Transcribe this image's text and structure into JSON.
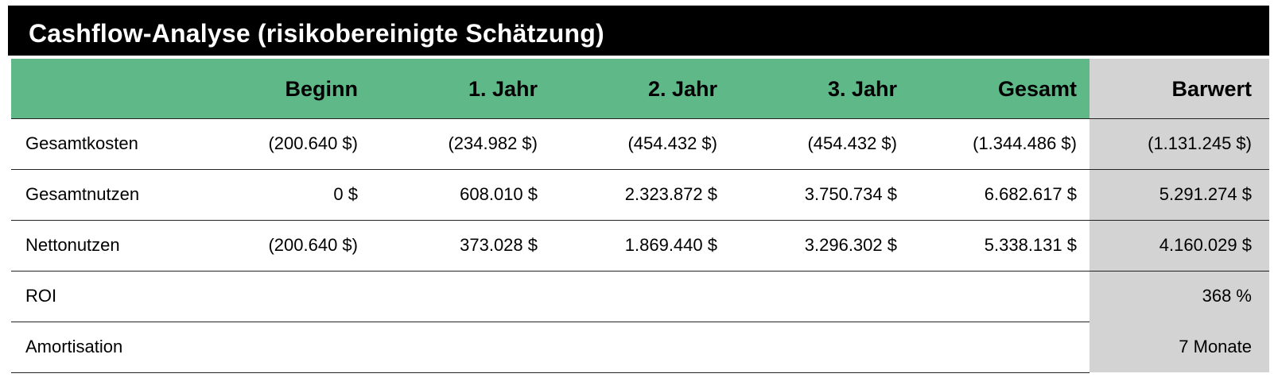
{
  "title": "Cashflow-Analyse (risikobereinigte Schätzung)",
  "header": [
    "",
    "Beginn",
    "1. Jahr",
    "2. Jahr",
    "3. Jahr",
    "Gesamt",
    "Barwert"
  ],
  "rows": [
    {
      "label": "Gesamtkosten",
      "cells": [
        "(200.640 $)",
        "(234.982 $)",
        "(454.432 $)",
        "(454.432 $)",
        "(1.344.486 $)",
        "(1.131.245 $)"
      ]
    },
    {
      "label": "Gesamtnutzen",
      "cells": [
        "0 $",
        "608.010 $",
        "2.323.872 $",
        "3.750.734 $",
        "6.682.617 $",
        "5.291.274 $"
      ]
    },
    {
      "label": "Nettonutzen",
      "cells": [
        "(200.640 $)",
        "373.028 $",
        "1.869.440 $",
        "3.296.302 $",
        "5.338.131 $",
        "4.160.029 $"
      ]
    },
    {
      "label": "ROI",
      "cells": [
        "",
        "",
        "",
        "",
        "",
        "368 %"
      ]
    },
    {
      "label": "Amortisation",
      "cells": [
        "",
        "",
        "",
        "",
        "",
        "7 Monate"
      ]
    }
  ],
  "colors": {
    "title_bg": "#000000",
    "title_text": "#ffffff",
    "header_green": "#5fb887",
    "present_value_gray": "#d3d3d3"
  }
}
